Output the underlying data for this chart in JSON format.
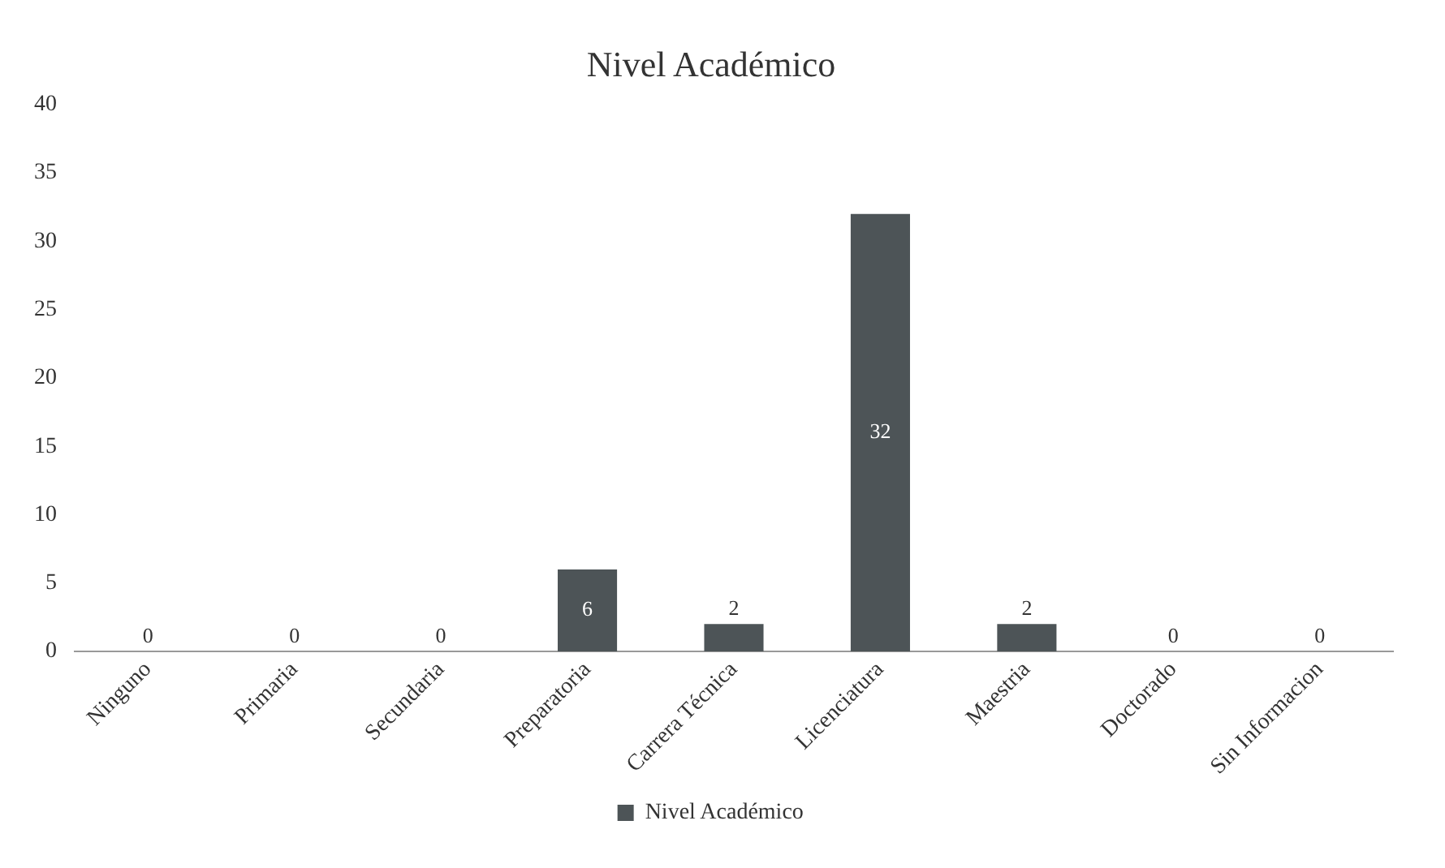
{
  "chart_data": {
    "type": "bar",
    "title": "Nivel Académico",
    "categories": [
      "Ninguno",
      "Primaria",
      "Secundaria",
      "Preparatoria",
      "Carrera Técnica",
      "Licenciatura",
      "Maestria",
      "Doctorado",
      "Sin Informacion"
    ],
    "series": [
      {
        "name": "Nivel Académico",
        "color": "#4d5457",
        "values": [
          0,
          0,
          0,
          6,
          2,
          32,
          2,
          0,
          0
        ]
      }
    ],
    "ylim": [
      0,
      40
    ],
    "yticks": [
      0,
      5,
      10,
      15,
      20,
      25,
      30,
      35,
      40
    ],
    "grid": false,
    "legend": "bottom",
    "data_labels": true
  }
}
